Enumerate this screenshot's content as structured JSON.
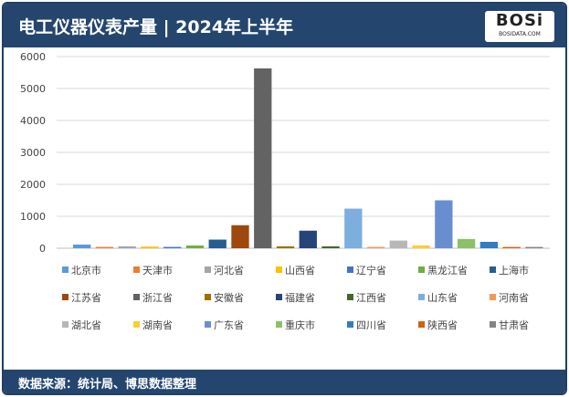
{
  "header": {
    "title": "电工仪器仪表产量 | 2024年上半年",
    "logo": "BOSi",
    "logo_sub": "BOSIDATA.COM"
  },
  "footer": {
    "source": "数据来源：统计局、博思数据整理"
  },
  "chart_data": {
    "type": "bar",
    "title": "电工仪器仪表产量 | 2024年上半年",
    "xlabel": "",
    "ylabel": "",
    "ylim": [
      0,
      6000
    ],
    "yticks": [
      0,
      1000,
      2000,
      3000,
      4000,
      5000,
      6000
    ],
    "grid": true,
    "legend": "bottom",
    "series": [
      {
        "name": "北京市",
        "value": 115,
        "color": "#5b9bd5"
      },
      {
        "name": "天津市",
        "value": 40,
        "color": "#ed7d31"
      },
      {
        "name": "河北省",
        "value": 60,
        "color": "#a5a5a5"
      },
      {
        "name": "山西省",
        "value": 50,
        "color": "#ffc000"
      },
      {
        "name": "辽宁省",
        "value": 40,
        "color": "#4472c4"
      },
      {
        "name": "黑龙江省",
        "value": 85,
        "color": "#70ad47"
      },
      {
        "name": "上海市",
        "value": 270,
        "color": "#255e91"
      },
      {
        "name": "江苏省",
        "value": 720,
        "color": "#9e480e"
      },
      {
        "name": "浙江省",
        "value": 5630,
        "color": "#636363"
      },
      {
        "name": "安徽省",
        "value": 60,
        "color": "#997300"
      },
      {
        "name": "福建省",
        "value": 550,
        "color": "#264478"
      },
      {
        "name": "江西省",
        "value": 60,
        "color": "#43682b"
      },
      {
        "name": "山东省",
        "value": 1240,
        "color": "#7cafdd"
      },
      {
        "name": "河南省",
        "value": 40,
        "color": "#f1975a"
      },
      {
        "name": "湖北省",
        "value": 240,
        "color": "#b7b7b7"
      },
      {
        "name": "湖南省",
        "value": 90,
        "color": "#ffcd33"
      },
      {
        "name": "广东省",
        "value": 1500,
        "color": "#698ed0"
      },
      {
        "name": "重庆市",
        "value": 290,
        "color": "#8cc168"
      },
      {
        "name": "四川省",
        "value": 200,
        "color": "#327dc2"
      },
      {
        "name": "陕西省",
        "value": 40,
        "color": "#d26012"
      },
      {
        "name": "甘肃省",
        "value": 40,
        "color": "#848484"
      }
    ]
  }
}
